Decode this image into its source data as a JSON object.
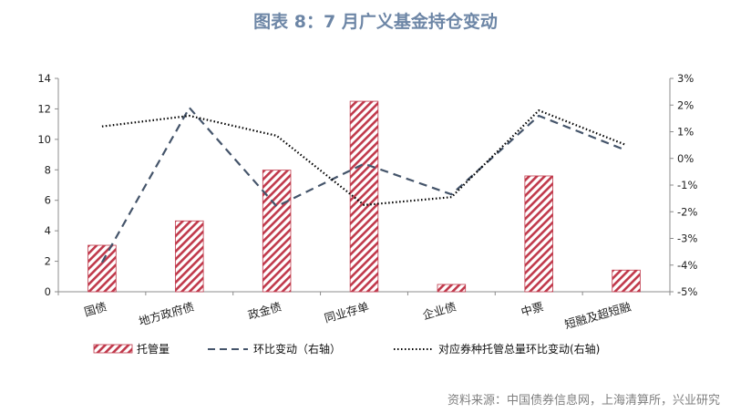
{
  "chart_data": {
    "type": "bar",
    "title": "图表 8：7 月广义基金持仓变动",
    "categories": [
      "国债",
      "地方政府债",
      "政金债",
      "同业存单",
      "企业债",
      "中票",
      "短融及超短融"
    ],
    "series": [
      {
        "name": "托管量",
        "type": "bar",
        "axis": "left",
        "values": [
          3.05,
          4.65,
          7.98,
          12.5,
          0.48,
          7.6,
          1.42
        ],
        "color": "#c0394b"
      },
      {
        "name": "环比变动（右轴）",
        "type": "line",
        "axis": "right",
        "values": [
          -3.9,
          1.9,
          -1.8,
          -0.2,
          -1.35,
          1.6,
          0.3
        ],
        "color": "#44546a"
      },
      {
        "name": "对应券种托管总量环比变动(右轴)",
        "type": "line",
        "axis": "right",
        "values": [
          1.2,
          1.6,
          0.85,
          -1.75,
          -1.45,
          1.8,
          0.5
        ],
        "color": "#000000"
      }
    ],
    "y_left": {
      "range": [
        0,
        14
      ],
      "ticks": [
        "0",
        "2",
        "4",
        "6",
        "8",
        "10",
        "12",
        "14"
      ]
    },
    "y_right": {
      "range": [
        -5,
        3
      ],
      "ticks": [
        "-5%",
        "-4%",
        "-3%",
        "-2%",
        "-1%",
        "0%",
        "1%",
        "2%",
        "3%"
      ]
    },
    "grid": false,
    "legend_position": "bottom"
  },
  "source": "资料来源：中国债券信息网，上海清算所，兴业研究"
}
